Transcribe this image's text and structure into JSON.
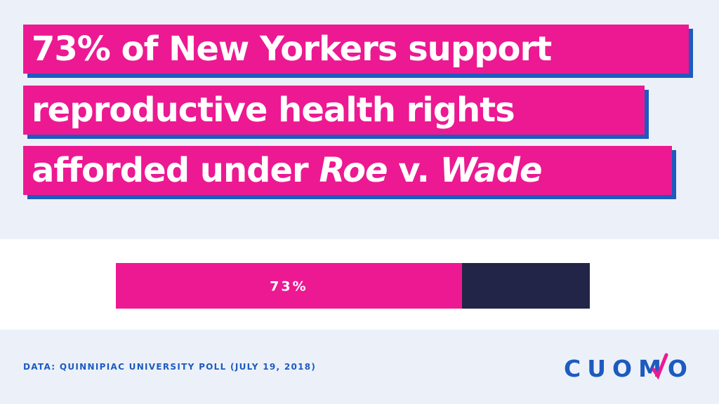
{
  "headline": {
    "line1": "73% of New Yorkers support",
    "line2": "reproductive health rights",
    "line3_prefix": "afforded under ",
    "line3_roe": "Roe",
    "line3_mid": " v. ",
    "line3_wade": "Wade"
  },
  "chart_data": {
    "type": "bar",
    "orientation": "horizontal",
    "stacked": true,
    "xlim": [
      0,
      100
    ],
    "segments": [
      {
        "value": 73,
        "label": "73%",
        "color": "#ec1992"
      },
      {
        "value": 27,
        "label": "",
        "color": "#222548"
      }
    ]
  },
  "source": "DATA: QUINNIPIAC UNIVERSITY POLL (JULY 19, 2018)",
  "logo": {
    "text": "CUOMO",
    "accent_color": "#ec1992",
    "color": "#1d5bbf"
  },
  "colors": {
    "background": "#ecf1f9",
    "band": "#ffffff",
    "headline_fill": "#ec1992",
    "headline_shadow": "#1d5bbf"
  }
}
